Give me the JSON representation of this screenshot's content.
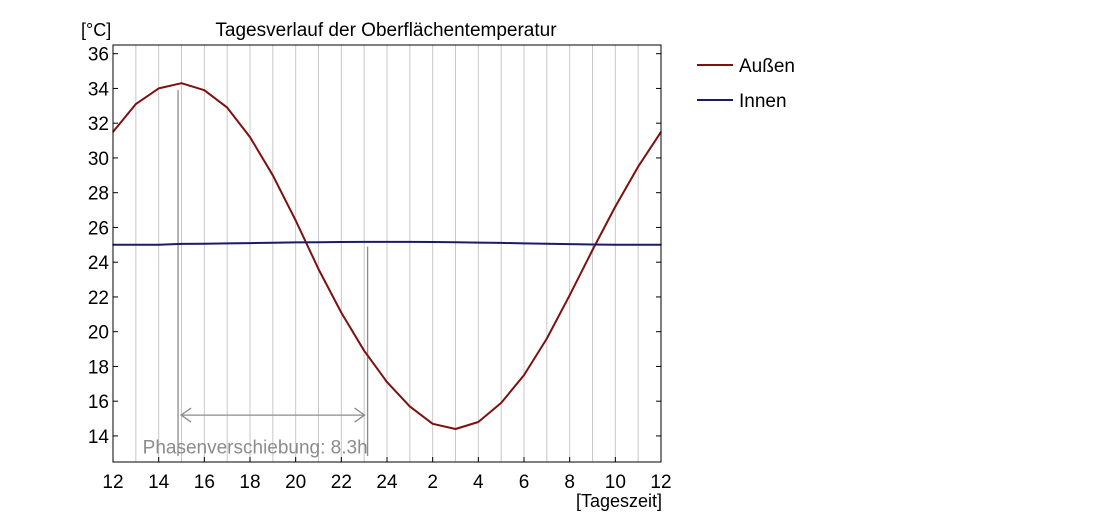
{
  "chart_data": {
    "type": "line",
    "title": "Tagesverlauf der Oberflächentemperatur",
    "ylabel": "[°C]",
    "xlabel": "[Tageszeit]",
    "ylim": [
      12.5,
      36.5
    ],
    "yticks": [
      14,
      16,
      18,
      20,
      22,
      24,
      26,
      28,
      30,
      32,
      34,
      36
    ],
    "x_hours_elapsed_range": [
      0,
      24
    ],
    "xtick_labels": [
      "12",
      "14",
      "16",
      "18",
      "20",
      "22",
      "24",
      "2",
      "4",
      "6",
      "8",
      "10",
      "12"
    ],
    "grid": "vertical, every hour",
    "legend_position": "right, outside plot",
    "x": [
      "12",
      "13",
      "14",
      "15",
      "16",
      "17",
      "18",
      "19",
      "20",
      "21",
      "22",
      "23",
      "24",
      "1",
      "2",
      "3",
      "4",
      "5",
      "6",
      "7",
      "8",
      "9",
      "10",
      "11",
      "12"
    ],
    "series": [
      {
        "name": "Außen",
        "color": "#7f1010",
        "values": [
          31.5,
          33.1,
          34.0,
          34.3,
          33.9,
          32.9,
          31.2,
          29.0,
          26.4,
          23.6,
          21.1,
          18.9,
          17.1,
          15.7,
          14.7,
          14.4,
          14.8,
          15.9,
          17.5,
          19.6,
          22.1,
          24.7,
          27.2,
          29.5,
          31.5
        ]
      },
      {
        "name": "Innen",
        "color": "#1b1b6b",
        "values": [
          25.0,
          25.0,
          25.0,
          25.05,
          25.06,
          25.08,
          25.1,
          25.12,
          25.14,
          25.15,
          25.16,
          25.17,
          25.17,
          25.17,
          25.16,
          25.15,
          25.13,
          25.11,
          25.08,
          25.06,
          25.04,
          25.02,
          25.0,
          25.0,
          25.0
        ]
      }
    ],
    "annotation": {
      "text": "Phasenverschiebung: 8.3h",
      "color": "#8c8c8c"
    }
  }
}
